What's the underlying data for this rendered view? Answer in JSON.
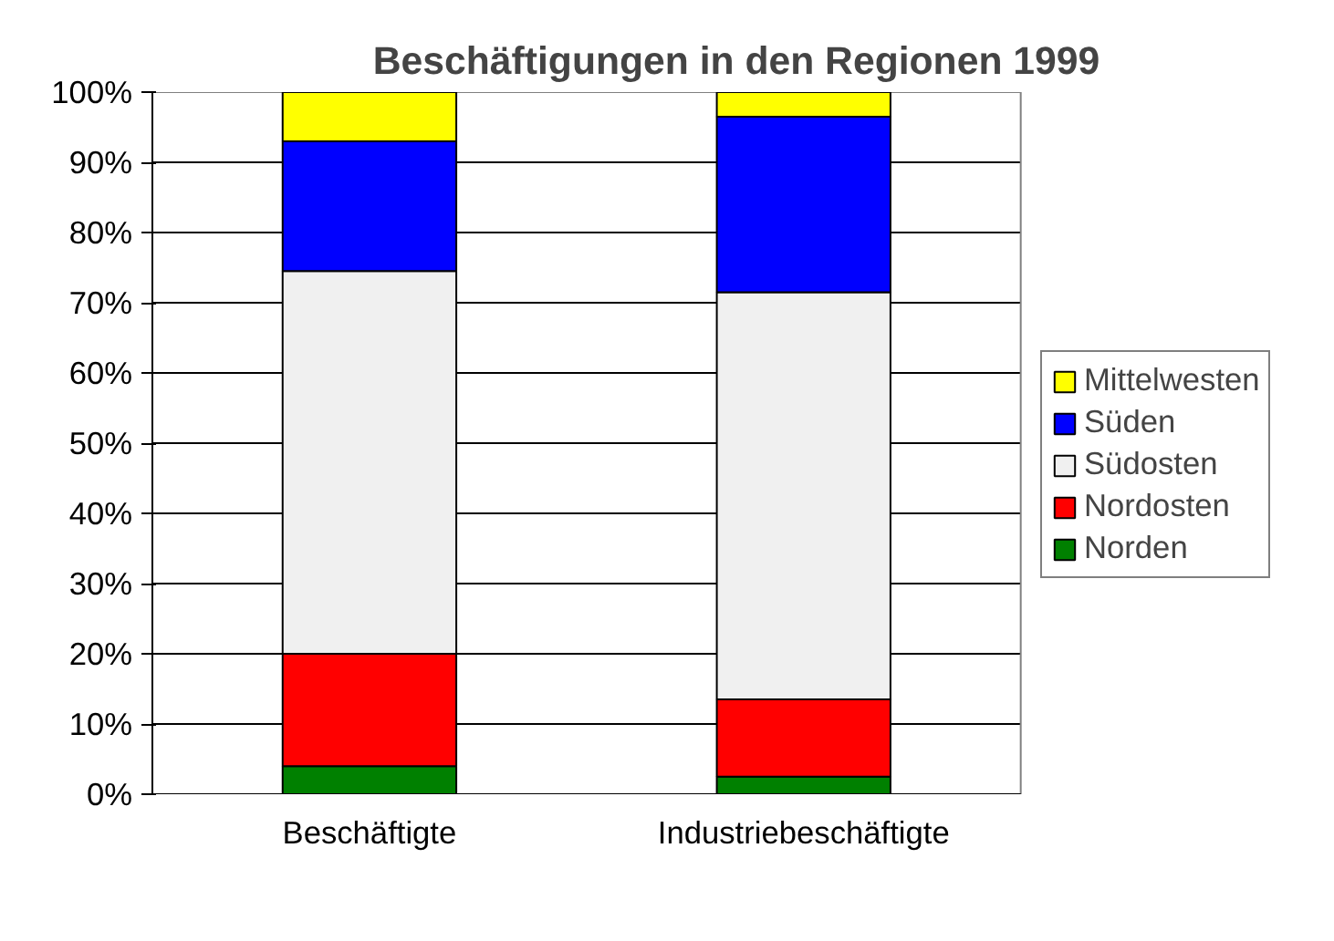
{
  "chart_data": {
    "type": "bar",
    "title": "Beschäftigungen in den Regionen 1999",
    "stacked": true,
    "categories": [
      "Beschäftigte",
      "Industriebeschäftigte"
    ],
    "series": [
      {
        "name": "Norden",
        "color": "#008000",
        "values": [
          4,
          2.5
        ]
      },
      {
        "name": "Nordosten",
        "color": "#ff0000",
        "values": [
          16,
          11
        ]
      },
      {
        "name": "Südosten",
        "color": "#f0f0f0",
        "values": [
          54.5,
          58
        ]
      },
      {
        "name": "Süden",
        "color": "#0000ff",
        "values": [
          18.5,
          25
        ]
      },
      {
        "name": "Mittelwesten",
        "color": "#ffff00",
        "values": [
          7,
          3.5
        ]
      }
    ],
    "ylim": [
      0,
      100
    ],
    "yticks": [
      {
        "value": 0,
        "label": "0%"
      },
      {
        "value": 10,
        "label": "10%"
      },
      {
        "value": 20,
        "label": "20%"
      },
      {
        "value": 30,
        "label": "30%"
      },
      {
        "value": 40,
        "label": "40%"
      },
      {
        "value": 50,
        "label": "50%"
      },
      {
        "value": 60,
        "label": "60%"
      },
      {
        "value": 70,
        "label": "70%"
      },
      {
        "value": 80,
        "label": "80%"
      },
      {
        "value": 90,
        "label": "90%"
      },
      {
        "value": 100,
        "label": "100%"
      }
    ],
    "grid": "y",
    "legend": "right"
  }
}
